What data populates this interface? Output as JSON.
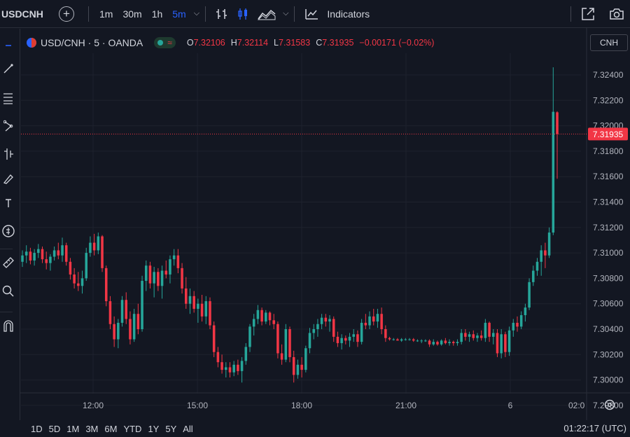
{
  "toolbar": {
    "symbol": "USDCNH",
    "add_symbol_icon": "plus-circle-icon",
    "timeframes": [
      "1m",
      "30m",
      "1h",
      "5m"
    ],
    "active_timeframe": "5m",
    "indicators_label": "Indicators"
  },
  "legend": {
    "title": "USD/CNH · 5 · OANDA",
    "status": "market-open",
    "ohlc": [
      {
        "key": "O",
        "value": "7.32106"
      },
      {
        "key": "H",
        "value": "7.32114"
      },
      {
        "key": "L",
        "value": "7.31583"
      },
      {
        "key": "C",
        "value": "7.31935"
      }
    ],
    "change": "−0.00171 (−0.02%)"
  },
  "currency": "CNH",
  "colors": {
    "background": "#131722",
    "up": "#26a69a",
    "down": "#f23645",
    "grid": "#1f2330",
    "accent": "#2962ff"
  },
  "chart_data": {
    "type": "candlestick",
    "y_ticks": [
      "7.32400",
      "7.32200",
      "7.32000",
      "7.31800",
      "7.31600",
      "7.31400",
      "7.31200",
      "7.31000",
      "7.30800",
      "7.30600",
      "7.30400",
      "7.30200",
      "7.30000",
      "7.29800"
    ],
    "ylim": [
      7.2975,
      7.3257
    ],
    "x_ticks": [
      "12:00",
      "15:00",
      "18:00",
      "21:00",
      "6",
      "02:0"
    ],
    "last_price": "7.31935",
    "last_price_value": 7.31935,
    "candles": [
      {
        "o": 7.3093,
        "h": 7.3102,
        "l": 7.3089,
        "c": 7.3098
      },
      {
        "o": 7.3098,
        "h": 7.3106,
        "l": 7.3092,
        "c": 7.3101
      },
      {
        "o": 7.3101,
        "h": 7.3104,
        "l": 7.3091,
        "c": 7.3094
      },
      {
        "o": 7.3094,
        "h": 7.3103,
        "l": 7.309,
        "c": 7.31
      },
      {
        "o": 7.31,
        "h": 7.3107,
        "l": 7.3096,
        "c": 7.3103
      },
      {
        "o": 7.3103,
        "h": 7.3105,
        "l": 7.3092,
        "c": 7.3095
      },
      {
        "o": 7.3095,
        "h": 7.3101,
        "l": 7.3087,
        "c": 7.3092
      },
      {
        "o": 7.3092,
        "h": 7.3099,
        "l": 7.3086,
        "c": 7.3097
      },
      {
        "o": 7.3097,
        "h": 7.3105,
        "l": 7.3094,
        "c": 7.3102
      },
      {
        "o": 7.3102,
        "h": 7.3108,
        "l": 7.3095,
        "c": 7.3098
      },
      {
        "o": 7.3098,
        "h": 7.3112,
        "l": 7.3093,
        "c": 7.3106
      },
      {
        "o": 7.3106,
        "h": 7.3108,
        "l": 7.309,
        "c": 7.3093
      },
      {
        "o": 7.3093,
        "h": 7.3096,
        "l": 7.3079,
        "c": 7.3083
      },
      {
        "o": 7.3083,
        "h": 7.3088,
        "l": 7.3072,
        "c": 7.3076
      },
      {
        "o": 7.3076,
        "h": 7.3085,
        "l": 7.307,
        "c": 7.3074
      },
      {
        "o": 7.3074,
        "h": 7.3086,
        "l": 7.3068,
        "c": 7.308
      },
      {
        "o": 7.308,
        "h": 7.3104,
        "l": 7.3078,
        "c": 7.31
      },
      {
        "o": 7.31,
        "h": 7.3113,
        "l": 7.3097,
        "c": 7.3108
      },
      {
        "o": 7.3108,
        "h": 7.3115,
        "l": 7.3098,
        "c": 7.3102
      },
      {
        "o": 7.3102,
        "h": 7.3116,
        "l": 7.3099,
        "c": 7.3113
      },
      {
        "o": 7.3113,
        "h": 7.3114,
        "l": 7.3085,
        "c": 7.3088
      },
      {
        "o": 7.3088,
        "h": 7.309,
        "l": 7.3058,
        "c": 7.3062
      },
      {
        "o": 7.3062,
        "h": 7.3066,
        "l": 7.304,
        "c": 7.3044
      },
      {
        "o": 7.3044,
        "h": 7.305,
        "l": 7.3026,
        "c": 7.3032
      },
      {
        "o": 7.3032,
        "h": 7.3048,
        "l": 7.3025,
        "c": 7.3045
      },
      {
        "o": 7.3045,
        "h": 7.3066,
        "l": 7.3042,
        "c": 7.3063
      },
      {
        "o": 7.3063,
        "h": 7.3069,
        "l": 7.3044,
        "c": 7.3048
      },
      {
        "o": 7.3048,
        "h": 7.3054,
        "l": 7.3028,
        "c": 7.3032
      },
      {
        "o": 7.3032,
        "h": 7.3056,
        "l": 7.303,
        "c": 7.3052
      },
      {
        "o": 7.3052,
        "h": 7.306,
        "l": 7.3036,
        "c": 7.304
      },
      {
        "o": 7.304,
        "h": 7.3082,
        "l": 7.3038,
        "c": 7.3078
      },
      {
        "o": 7.3078,
        "h": 7.3094,
        "l": 7.307,
        "c": 7.309
      },
      {
        "o": 7.309,
        "h": 7.3093,
        "l": 7.3072,
        "c": 7.3076
      },
      {
        "o": 7.3076,
        "h": 7.3089,
        "l": 7.3065,
        "c": 7.3085
      },
      {
        "o": 7.3085,
        "h": 7.3088,
        "l": 7.307,
        "c": 7.3074
      },
      {
        "o": 7.3074,
        "h": 7.309,
        "l": 7.3064,
        "c": 7.3086
      },
      {
        "o": 7.3086,
        "h": 7.3094,
        "l": 7.308,
        "c": 7.3083
      },
      {
        "o": 7.3083,
        "h": 7.3098,
        "l": 7.3076,
        "c": 7.3095
      },
      {
        "o": 7.3095,
        "h": 7.3103,
        "l": 7.309,
        "c": 7.3098
      },
      {
        "o": 7.3098,
        "h": 7.3103,
        "l": 7.3084,
        "c": 7.3088
      },
      {
        "o": 7.3088,
        "h": 7.3092,
        "l": 7.3068,
        "c": 7.3072
      },
      {
        "o": 7.3072,
        "h": 7.3081,
        "l": 7.3056,
        "c": 7.306
      },
      {
        "o": 7.306,
        "h": 7.3072,
        "l": 7.3052,
        "c": 7.3066
      },
      {
        "o": 7.3066,
        "h": 7.307,
        "l": 7.3053,
        "c": 7.3056
      },
      {
        "o": 7.3056,
        "h": 7.3064,
        "l": 7.3045,
        "c": 7.306
      },
      {
        "o": 7.306,
        "h": 7.3067,
        "l": 7.3046,
        "c": 7.305
      },
      {
        "o": 7.305,
        "h": 7.3066,
        "l": 7.3044,
        "c": 7.3062
      },
      {
        "o": 7.3062,
        "h": 7.3065,
        "l": 7.304,
        "c": 7.3043
      },
      {
        "o": 7.3043,
        "h": 7.3046,
        "l": 7.3018,
        "c": 7.3022
      },
      {
        "o": 7.3022,
        "h": 7.3026,
        "l": 7.301,
        "c": 7.3014
      },
      {
        "o": 7.3014,
        "h": 7.302,
        "l": 7.3005,
        "c": 7.3008
      },
      {
        "o": 7.3008,
        "h": 7.3014,
        "l": 7.3002,
        "c": 7.301
      },
      {
        "o": 7.301,
        "h": 7.3014,
        "l": 7.3002,
        "c": 7.3006
      },
      {
        "o": 7.3006,
        "h": 7.3015,
        "l": 7.3003,
        "c": 7.3012
      },
      {
        "o": 7.3012,
        "h": 7.3016,
        "l": 7.3004,
        "c": 7.3007
      },
      {
        "o": 7.3007,
        "h": 7.3018,
        "l": 7.2998,
        "c": 7.3015
      },
      {
        "o": 7.3015,
        "h": 7.3029,
        "l": 7.3012,
        "c": 7.3026
      },
      {
        "o": 7.3026,
        "h": 7.3044,
        "l": 7.3022,
        "c": 7.3042
      },
      {
        "o": 7.3042,
        "h": 7.3052,
        "l": 7.3035,
        "c": 7.3048
      },
      {
        "o": 7.3048,
        "h": 7.3059,
        "l": 7.3044,
        "c": 7.3055
      },
      {
        "o": 7.3055,
        "h": 7.3057,
        "l": 7.3043,
        "c": 7.3046
      },
      {
        "o": 7.3046,
        "h": 7.3055,
        "l": 7.3044,
        "c": 7.3053
      },
      {
        "o": 7.3053,
        "h": 7.3054,
        "l": 7.3043,
        "c": 7.3047
      },
      {
        "o": 7.3047,
        "h": 7.3052,
        "l": 7.304,
        "c": 7.3044
      },
      {
        "o": 7.3044,
        "h": 7.3046,
        "l": 7.3017,
        "c": 7.3021
      },
      {
        "o": 7.3021,
        "h": 7.3028,
        "l": 7.3012,
        "c": 7.3016
      },
      {
        "o": 7.3016,
        "h": 7.3044,
        "l": 7.3014,
        "c": 7.304
      },
      {
        "o": 7.304,
        "h": 7.3042,
        "l": 7.3014,
        "c": 7.3018
      },
      {
        "o": 7.3018,
        "h": 7.3023,
        "l": 7.2998,
        "c": 7.3004
      },
      {
        "o": 7.3004,
        "h": 7.3016,
        "l": 7.3001,
        "c": 7.3012
      },
      {
        "o": 7.3012,
        "h": 7.3018,
        "l": 7.3002,
        "c": 7.3008
      },
      {
        "o": 7.3008,
        "h": 7.3027,
        "l": 7.3006,
        "c": 7.3025
      },
      {
        "o": 7.3025,
        "h": 7.3041,
        "l": 7.3021,
        "c": 7.3037
      },
      {
        "o": 7.3037,
        "h": 7.3044,
        "l": 7.3032,
        "c": 7.304
      },
      {
        "o": 7.304,
        "h": 7.3048,
        "l": 7.3034,
        "c": 7.3044
      },
      {
        "o": 7.3044,
        "h": 7.3052,
        "l": 7.304,
        "c": 7.3049
      },
      {
        "o": 7.3049,
        "h": 7.3052,
        "l": 7.3042,
        "c": 7.3046
      },
      {
        "o": 7.3046,
        "h": 7.3051,
        "l": 7.3038,
        "c": 7.3048
      },
      {
        "o": 7.3048,
        "h": 7.305,
        "l": 7.303,
        "c": 7.3034
      },
      {
        "o": 7.3034,
        "h": 7.3038,
        "l": 7.3026,
        "c": 7.3029
      },
      {
        "o": 7.3029,
        "h": 7.3036,
        "l": 7.3024,
        "c": 7.3033
      },
      {
        "o": 7.3033,
        "h": 7.3035,
        "l": 7.3028,
        "c": 7.3031
      },
      {
        "o": 7.3031,
        "h": 7.3037,
        "l": 7.3026,
        "c": 7.3034
      },
      {
        "o": 7.3034,
        "h": 7.304,
        "l": 7.303,
        "c": 7.3036
      },
      {
        "o": 7.3036,
        "h": 7.3039,
        "l": 7.3026,
        "c": 7.303
      },
      {
        "o": 7.303,
        "h": 7.3048,
        "l": 7.3028,
        "c": 7.3045
      },
      {
        "o": 7.3045,
        "h": 7.3052,
        "l": 7.304,
        "c": 7.3043
      },
      {
        "o": 7.3043,
        "h": 7.3054,
        "l": 7.304,
        "c": 7.305
      },
      {
        "o": 7.305,
        "h": 7.3056,
        "l": 7.3043,
        "c": 7.3046
      },
      {
        "o": 7.3046,
        "h": 7.3056,
        "l": 7.3041,
        "c": 7.3052
      },
      {
        "o": 7.3052,
        "h": 7.3057,
        "l": 7.3036,
        "c": 7.304
      },
      {
        "o": 7.304,
        "h": 7.3043,
        "l": 7.303,
        "c": 7.3033
      },
      {
        "o": 7.3033,
        "h": 7.3034,
        "l": 7.3031,
        "c": 7.3032
      },
      {
        "o": 7.3032,
        "h": 7.3033,
        "l": 7.3031,
        "c": 7.3032
      },
      {
        "o": 7.3032,
        "h": 7.3033,
        "l": 7.3031,
        "c": 7.3031
      },
      {
        "o": 7.3031,
        "h": 7.3033,
        "l": 7.303,
        "c": 7.3032
      },
      {
        "o": 7.3032,
        "h": 7.3033,
        "l": 7.3031,
        "c": 7.3032
      },
      {
        "o": 7.3032,
        "h": 7.3033,
        "l": 7.3031,
        "c": 7.3032
      },
      {
        "o": 7.3032,
        "h": 7.3033,
        "l": 7.303,
        "c": 7.3031
      },
      {
        "o": 7.3031,
        "h": 7.3032,
        "l": 7.303,
        "c": 7.3031
      },
      {
        "o": 7.3031,
        "h": 7.3032,
        "l": 7.3029,
        "c": 7.3031
      },
      {
        "o": 7.3031,
        "h": 7.3032,
        "l": 7.303,
        "c": 7.3031
      },
      {
        "o": 7.3031,
        "h": 7.3032,
        "l": 7.3026,
        "c": 7.3028
      },
      {
        "o": 7.3028,
        "h": 7.3032,
        "l": 7.3027,
        "c": 7.303
      },
      {
        "o": 7.303,
        "h": 7.3031,
        "l": 7.3027,
        "c": 7.3028
      },
      {
        "o": 7.3028,
        "h": 7.3032,
        "l": 7.3027,
        "c": 7.3031
      },
      {
        "o": 7.3031,
        "h": 7.3033,
        "l": 7.3028,
        "c": 7.3029
      },
      {
        "o": 7.3029,
        "h": 7.3032,
        "l": 7.3027,
        "c": 7.303
      },
      {
        "o": 7.303,
        "h": 7.3031,
        "l": 7.3027,
        "c": 7.3029
      },
      {
        "o": 7.3029,
        "h": 7.3032,
        "l": 7.3027,
        "c": 7.303
      },
      {
        "o": 7.303,
        "h": 7.304,
        "l": 7.3028,
        "c": 7.3037
      },
      {
        "o": 7.3037,
        "h": 7.304,
        "l": 7.3031,
        "c": 7.3034
      },
      {
        "o": 7.3034,
        "h": 7.3038,
        "l": 7.303,
        "c": 7.3036
      },
      {
        "o": 7.3036,
        "h": 7.3039,
        "l": 7.3031,
        "c": 7.3033
      },
      {
        "o": 7.3033,
        "h": 7.3037,
        "l": 7.303,
        "c": 7.3035
      },
      {
        "o": 7.3035,
        "h": 7.3039,
        "l": 7.3031,
        "c": 7.3033
      },
      {
        "o": 7.3033,
        "h": 7.3048,
        "l": 7.303,
        "c": 7.3045
      },
      {
        "o": 7.3045,
        "h": 7.3046,
        "l": 7.303,
        "c": 7.3034
      },
      {
        "o": 7.3034,
        "h": 7.304,
        "l": 7.3028,
        "c": 7.3037
      },
      {
        "o": 7.3037,
        "h": 7.304,
        "l": 7.3018,
        "c": 7.3021
      },
      {
        "o": 7.3021,
        "h": 7.304,
        "l": 7.3017,
        "c": 7.3036
      },
      {
        "o": 7.3036,
        "h": 7.3038,
        "l": 7.3018,
        "c": 7.3022
      },
      {
        "o": 7.3022,
        "h": 7.3042,
        "l": 7.3019,
        "c": 7.3039
      },
      {
        "o": 7.3039,
        "h": 7.3048,
        "l": 7.3034,
        "c": 7.3045
      },
      {
        "o": 7.3045,
        "h": 7.305,
        "l": 7.3038,
        "c": 7.3042
      },
      {
        "o": 7.3042,
        "h": 7.3054,
        "l": 7.304,
        "c": 7.3051
      },
      {
        "o": 7.3051,
        "h": 7.306,
        "l": 7.3046,
        "c": 7.3057
      },
      {
        "o": 7.3057,
        "h": 7.308,
        "l": 7.3055,
        "c": 7.3077
      },
      {
        "o": 7.3077,
        "h": 7.309,
        "l": 7.3074,
        "c": 7.3086
      },
      {
        "o": 7.3086,
        "h": 7.3096,
        "l": 7.3082,
        "c": 7.3093
      },
      {
        "o": 7.3093,
        "h": 7.3106,
        "l": 7.3082,
        "c": 7.3102
      },
      {
        "o": 7.3102,
        "h": 7.3108,
        "l": 7.3088,
        "c": 7.3098
      },
      {
        "o": 7.3098,
        "h": 7.312,
        "l": 7.3096,
        "c": 7.3116
      },
      {
        "o": 7.3116,
        "h": 7.3246,
        "l": 7.3114,
        "c": 7.3211
      },
      {
        "o": 7.32106,
        "h": 7.32114,
        "l": 7.31583,
        "c": 7.31935
      }
    ]
  },
  "bottom_bar": {
    "ranges": [
      "1D",
      "5D",
      "1M",
      "3M",
      "6M",
      "YTD",
      "1Y",
      "5Y",
      "All"
    ],
    "clock": "01:22:17 (UTC)"
  }
}
